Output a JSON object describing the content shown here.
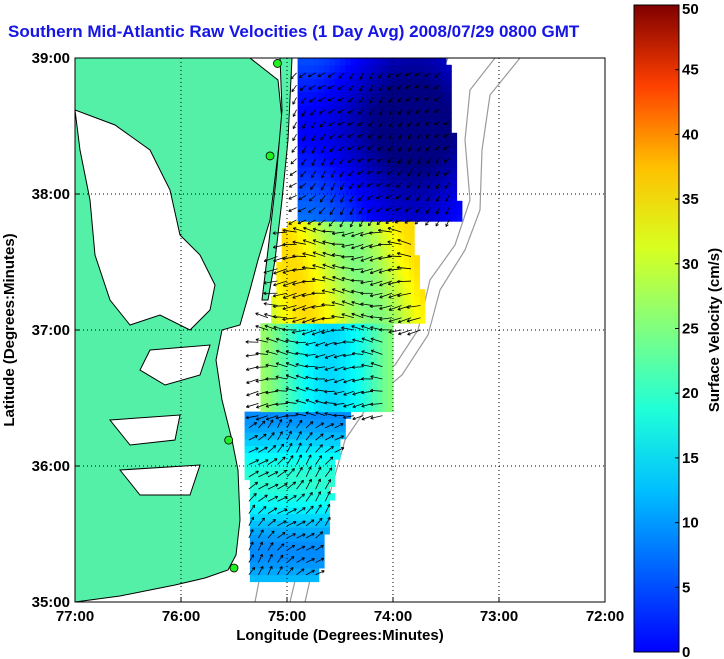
{
  "title": "Southern Mid-Atlantic Raw Velocities (1 Day Avg) 2008/07/29 0800 GMT",
  "map": {
    "lon_range": [
      -77,
      -72
    ],
    "lat_range": [
      35,
      39
    ],
    "xlabel": "Longitude (Degrees:Minutes)",
    "ylabel": "Latitude (Degrees:Minutes)",
    "x_ticks": [
      {
        "value": -77,
        "label": "77:00"
      },
      {
        "value": -76,
        "label": "76:00"
      },
      {
        "value": -75,
        "label": "75:00"
      },
      {
        "value": -74,
        "label": "74:00"
      },
      {
        "value": -73,
        "label": "73:00"
      },
      {
        "value": -72,
        "label": "72:00"
      }
    ],
    "y_ticks": [
      {
        "value": 35,
        "label": "35:00"
      },
      {
        "value": 36,
        "label": "36:00"
      },
      {
        "value": 37,
        "label": "37:00"
      },
      {
        "value": 38,
        "label": "38:00"
      },
      {
        "value": 39,
        "label": "39:00"
      }
    ],
    "grid": "dotted",
    "land_color": "#54f0a8",
    "coastline_color": "#000000",
    "bathymetry_color": "#9a9a9a",
    "hf_radar_sites": [
      {
        "lon": -75.09,
        "lat": 38.96
      },
      {
        "lon": -75.16,
        "lat": 38.28
      },
      {
        "lon": -75.55,
        "lat": 36.19
      },
      {
        "lon": -75.5,
        "lat": 35.25
      }
    ]
  },
  "colorbar": {
    "label": "Surface Velocity (cm/s)",
    "min": 0,
    "max": 50,
    "ticks": [
      "0",
      "5",
      "10",
      "15",
      "20",
      "25",
      "30",
      "35",
      "40",
      "45",
      "50"
    ],
    "colormap": "jet"
  },
  "velocity_field": {
    "units": "cm/s",
    "regions": [
      {
        "name": "northern",
        "speed_range": [
          3,
          12
        ],
        "direction": "southwest"
      },
      {
        "name": "central",
        "speed_range": [
          25,
          35
        ],
        "direction": "west"
      },
      {
        "name": "southern",
        "speed_range": [
          15,
          25
        ],
        "direction": "northeast"
      }
    ]
  }
}
